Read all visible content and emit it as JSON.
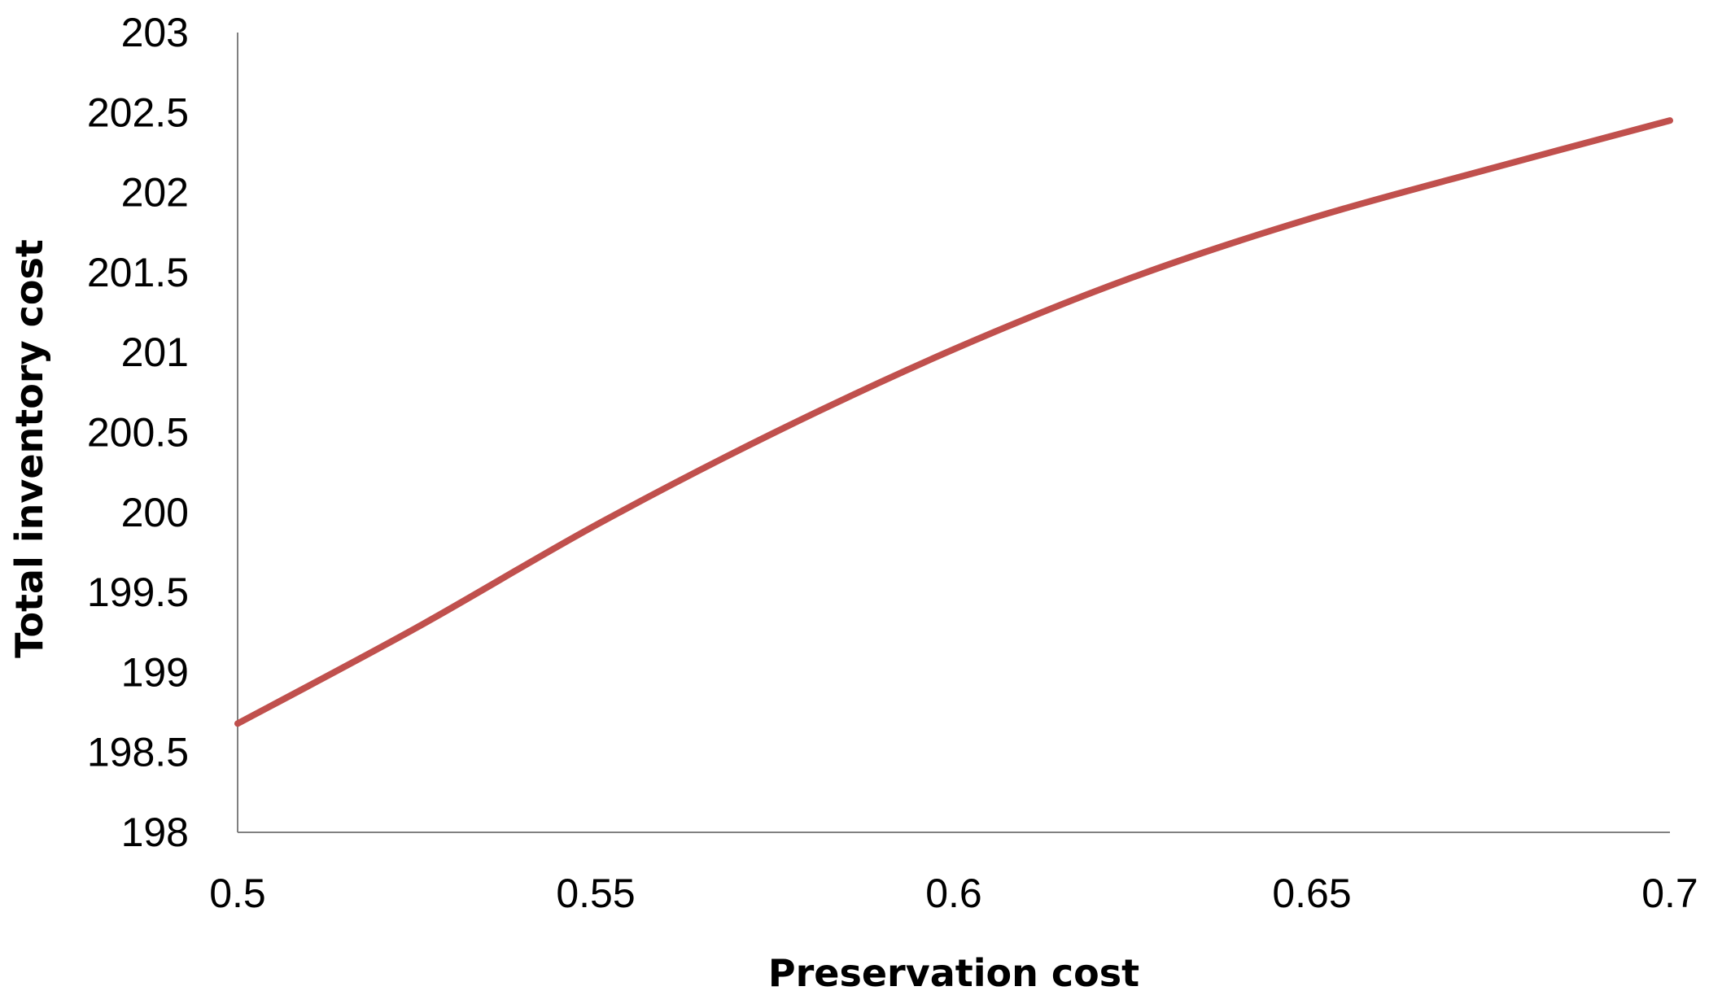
{
  "chart_data": {
    "type": "line",
    "title": "",
    "xlabel": "Preservation cost",
    "ylabel": "Total inventory cost",
    "xlim": [
      0.5,
      0.7
    ],
    "ylim": [
      198,
      203
    ],
    "xticks": [
      0.5,
      0.55,
      0.6,
      0.65,
      0.7
    ],
    "xtick_labels": [
      "0.5",
      "0.55",
      "0.6",
      "0.65",
      "0.7"
    ],
    "yticks": [
      198,
      198.5,
      199,
      199.5,
      200,
      200.5,
      201,
      201.5,
      202,
      202.5,
      203
    ],
    "ytick_labels": [
      "198",
      "198.5",
      "199",
      "199.5",
      "200",
      "200.5",
      "201",
      "201.5",
      "202",
      "202.5",
      "203"
    ],
    "grid": false,
    "legend": "none",
    "series": [
      {
        "color": "#c0504d",
        "x": [
          0.5,
          0.525,
          0.55,
          0.575,
          0.6,
          0.625,
          0.65,
          0.675,
          0.7
        ],
        "y": [
          198.68,
          199.28,
          199.92,
          200.5,
          201.02,
          201.47,
          201.84,
          202.15,
          202.45
        ]
      }
    ]
  }
}
